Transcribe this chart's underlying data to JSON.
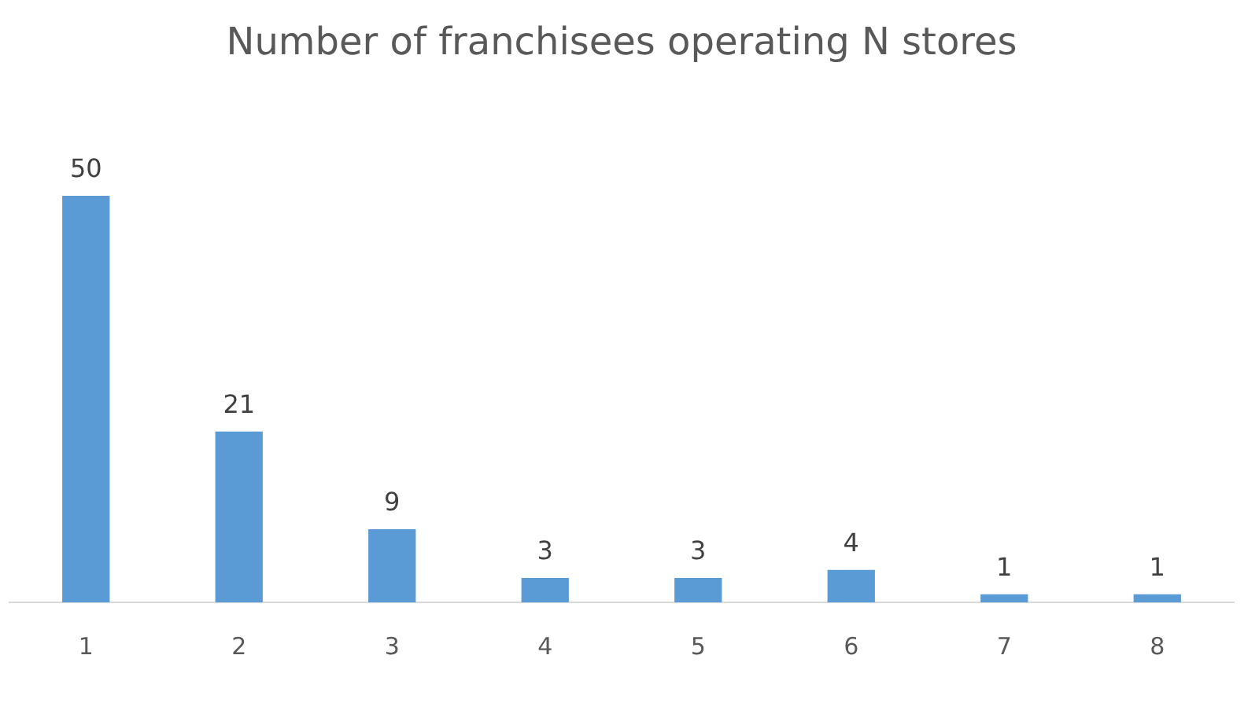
{
  "chart_data": {
    "type": "bar",
    "title": "Number of franchisees operating N stores",
    "categories": [
      "1",
      "2",
      "3",
      "4",
      "5",
      "6",
      "7",
      "8"
    ],
    "values": [
      50,
      21,
      9,
      3,
      3,
      4,
      1,
      1
    ],
    "color": "#5b9bd5",
    "data_labels": true,
    "grid": false,
    "legend": false
  }
}
